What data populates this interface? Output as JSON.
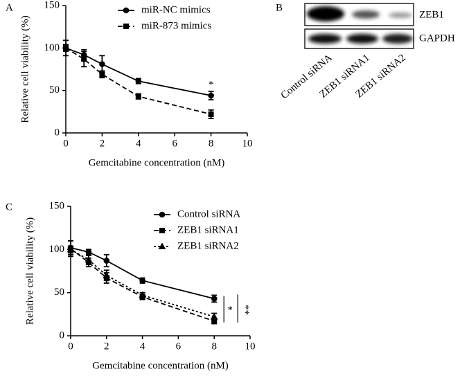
{
  "chart_data": [
    {
      "type": "line",
      "panel_label": "A",
      "x": [
        0,
        1,
        2,
        4,
        8
      ],
      "series": [
        {
          "name": "miR-NC mimics",
          "color": "#000000",
          "marker": "circle",
          "line_style": "solid",
          "values": [
            100,
            92,
            81,
            61,
            44
          ],
          "errors": [
            9,
            6,
            10,
            3,
            5
          ]
        },
        {
          "name": "miR-873 mimics",
          "color": "#000000",
          "marker": "square",
          "line_style": "dashed",
          "values": [
            100,
            87,
            69,
            43,
            22
          ],
          "errors": [
            4,
            9,
            4,
            3,
            5
          ]
        }
      ],
      "xlim": [
        0,
        10
      ],
      "ylim": [
        0,
        150
      ],
      "xticks": [
        0,
        2,
        4,
        6,
        8,
        10
      ],
      "yticks": [
        0,
        50,
        100,
        150
      ],
      "xlabel": "Gemcitabine concentration (nM)",
      "ylabel": "Relative cell viability (%)",
      "annotations": [
        "*"
      ]
    },
    {
      "type": "line",
      "panel_label": "C",
      "x": [
        0,
        1,
        2,
        4,
        8
      ],
      "series": [
        {
          "name": "Control siRNA",
          "color": "#000000",
          "marker": "circle",
          "line_style": "solid",
          "values": [
            102,
            97,
            87,
            64,
            43
          ],
          "errors": [
            8,
            3,
            7,
            3,
            4
          ]
        },
        {
          "name": "ZEB1 siRNA1",
          "color": "#000000",
          "marker": "square",
          "line_style": "dashed",
          "values": [
            101,
            85,
            67,
            45,
            17
          ],
          "errors": [
            9,
            5,
            6,
            3,
            3
          ]
        },
        {
          "name": "ZEB1 siRNA2",
          "color": "#000000",
          "marker": "triangle",
          "line_style": "dotted",
          "values": [
            100,
            88,
            70,
            47,
            22
          ],
          "errors": [
            4,
            5,
            6,
            3,
            4
          ]
        }
      ],
      "xlim": [
        0,
        10
      ],
      "ylim": [
        0,
        150
      ],
      "xticks": [
        0,
        2,
        4,
        6,
        8,
        10
      ],
      "yticks": [
        0,
        50,
        100,
        150
      ],
      "xlabel": "Gemcitabine concentration (nM)",
      "ylabel": "Relative cell viability (%)",
      "annotations": [
        "*",
        "**"
      ]
    }
  ],
  "blot": {
    "panel_label": "B",
    "rows": [
      "ZEB1",
      "GAPDH"
    ],
    "lanes": [
      "Control siRNA",
      "ZEB1 siRNA1",
      "ZEB1 siRNA2"
    ]
  }
}
